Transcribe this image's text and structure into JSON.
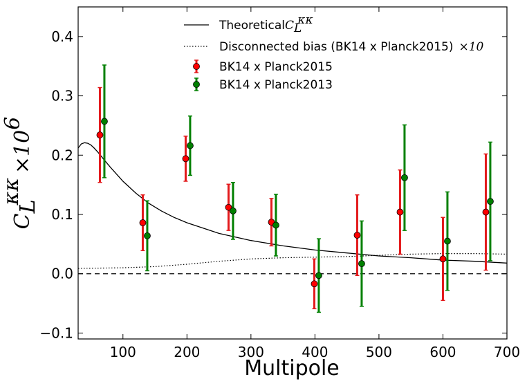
{
  "chart_data": {
    "type": "scatter",
    "xlabel": "Multipole",
    "ylabel_base": "C",
    "ylabel_sub": "L",
    "ylabel_sup": "κκ",
    "ylabel_factor": "×10",
    "ylabel_factor_exp": "6",
    "xlim": [
      30,
      700
    ],
    "ylim": [
      -0.11,
      0.45
    ],
    "xticks": [
      100,
      200,
      300,
      400,
      500,
      600,
      700
    ],
    "xtick_labels": [
      "100",
      "200",
      "300",
      "400",
      "500",
      "600",
      "700"
    ],
    "yticks": [
      -0.1,
      0.0,
      0.1,
      0.2,
      0.3,
      0.4
    ],
    "ytick_labels": [
      "−0.1",
      "0.0",
      "0.1",
      "0.2",
      "0.3",
      "0.4"
    ],
    "zero_line": 0.0,
    "series": [
      {
        "name": "BK14 x Planck2015",
        "color": "#ff0000",
        "bar_color": "#e31a1c",
        "x": [
          64,
          131,
          198,
          265,
          332,
          399,
          466,
          533,
          600,
          667
        ],
        "y": [
          0.234,
          0.086,
          0.194,
          0.112,
          0.087,
          -0.017,
          0.065,
          0.104,
          0.025,
          0.104
        ],
        "err": [
          0.08,
          0.047,
          0.038,
          0.039,
          0.04,
          0.042,
          0.068,
          0.071,
          0.07,
          0.098
        ]
      },
      {
        "name": "BK14 x Planck2013",
        "color": "#008000",
        "bar_color": "#008000",
        "x": [
          71,
          138,
          205,
          272,
          339,
          406,
          473,
          540,
          607,
          674
        ],
        "y": [
          0.257,
          0.064,
          0.216,
          0.106,
          0.082,
          -0.003,
          0.017,
          0.162,
          0.055,
          0.122
        ],
        "err": [
          0.095,
          0.059,
          0.05,
          0.048,
          0.052,
          0.062,
          0.072,
          0.089,
          0.083,
          0.1
        ]
      }
    ],
    "theory_curve": {
      "name": "Theoretical",
      "name_math": "C",
      "name_math_sub": "L",
      "name_math_sup": "κκ",
      "x": [
        30,
        35,
        40,
        45,
        50,
        55,
        60,
        70,
        80,
        90,
        100,
        120,
        140,
        160,
        180,
        200,
        250,
        300,
        350,
        400,
        450,
        500,
        550,
        600,
        650,
        700
      ],
      "y": [
        0.212,
        0.219,
        0.221,
        0.22,
        0.217,
        0.212,
        0.206,
        0.193,
        0.18,
        0.168,
        0.156,
        0.136,
        0.119,
        0.106,
        0.095,
        0.086,
        0.068,
        0.056,
        0.047,
        0.04,
        0.035,
        0.03,
        0.027,
        0.023,
        0.021,
        0.018
      ]
    },
    "bias_curve": {
      "name": "Disconnected bias (BK14 x Planck2015)",
      "name_factor": "×10",
      "x": [
        30,
        100,
        150,
        200,
        250,
        300,
        350,
        400,
        450,
        500,
        550,
        600,
        650,
        700
      ],
      "y": [
        0.009,
        0.01,
        0.012,
        0.016,
        0.021,
        0.025,
        0.027,
        0.028,
        0.029,
        0.031,
        0.033,
        0.034,
        0.034,
        0.033
      ]
    },
    "legend_location": "top"
  }
}
